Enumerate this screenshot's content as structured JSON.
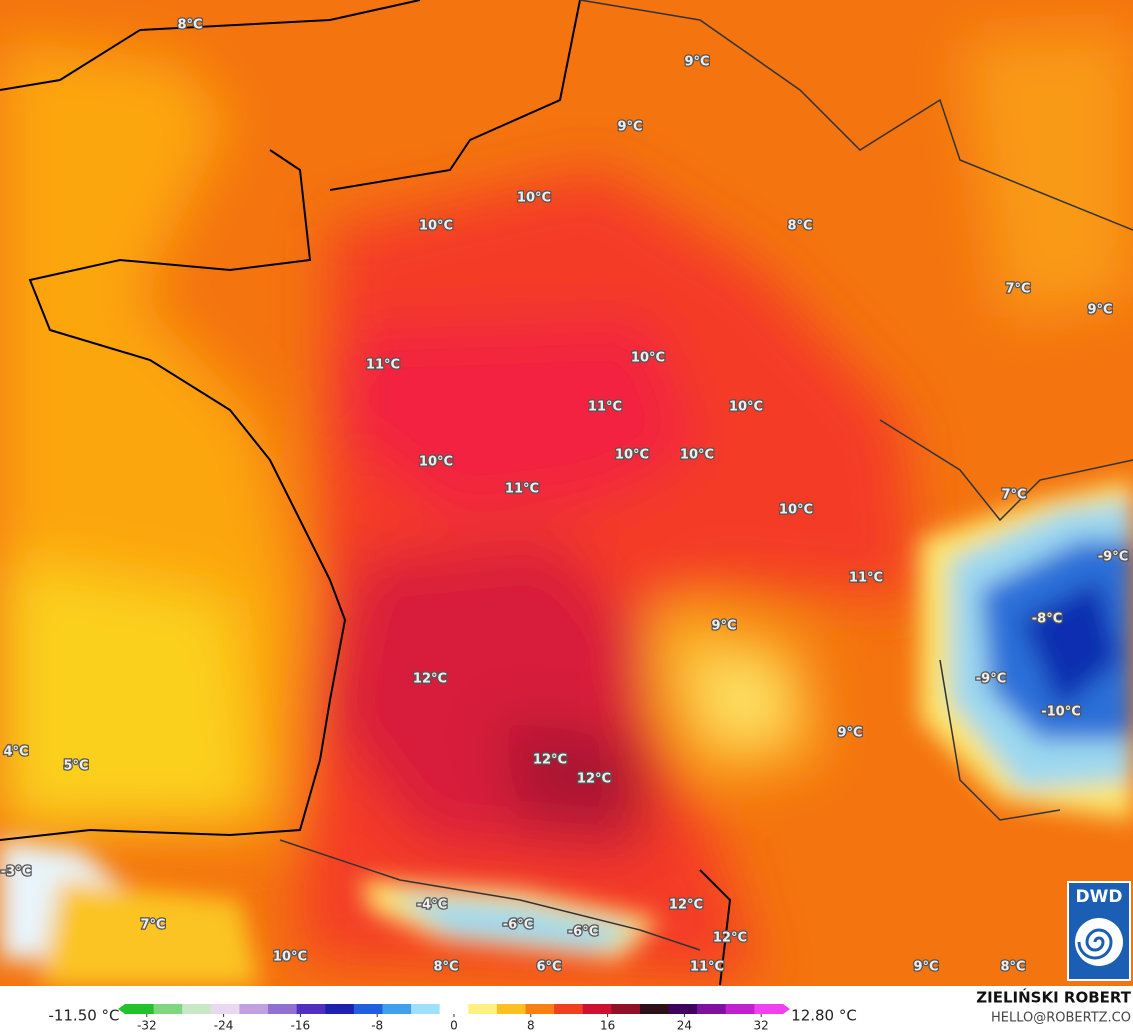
{
  "map": {
    "labels": [
      "8°C",
      "9°C",
      "9°C",
      "10°C",
      "10°C",
      "8°C",
      "7°C",
      "9°C",
      "11°C",
      "10°C",
      "11°C",
      "10°C",
      "10°C",
      "10°C",
      "10°C",
      "11°C",
      "10°C",
      "7°C",
      "-9°C",
      "11°C",
      "-8°C",
      "9°C",
      "12°C",
      "-9°C",
      "-10°C",
      "9°C",
      "4°C",
      "5°C",
      "12°C",
      "12°C",
      "-3°C",
      "7°C",
      "-4°C",
      "-6°C",
      "-6°C",
      "12°C",
      "12°C",
      "10°C",
      "8°C",
      "6°C",
      "11°C",
      "9°C",
      "8°C"
    ],
    "badge": "DWD"
  },
  "colorbar": {
    "range": [
      -35,
      35
    ],
    "ticks": [
      -32,
      -24,
      -16,
      -8,
      0,
      8,
      16,
      24,
      32
    ],
    "min_label": "-11.50 °C",
    "max_label": "12.80 °C"
  },
  "credits": {
    "name": "ZIELIŃSKI ROBERT",
    "contact": "HELLO@ROBERTZ.CO"
  }
}
